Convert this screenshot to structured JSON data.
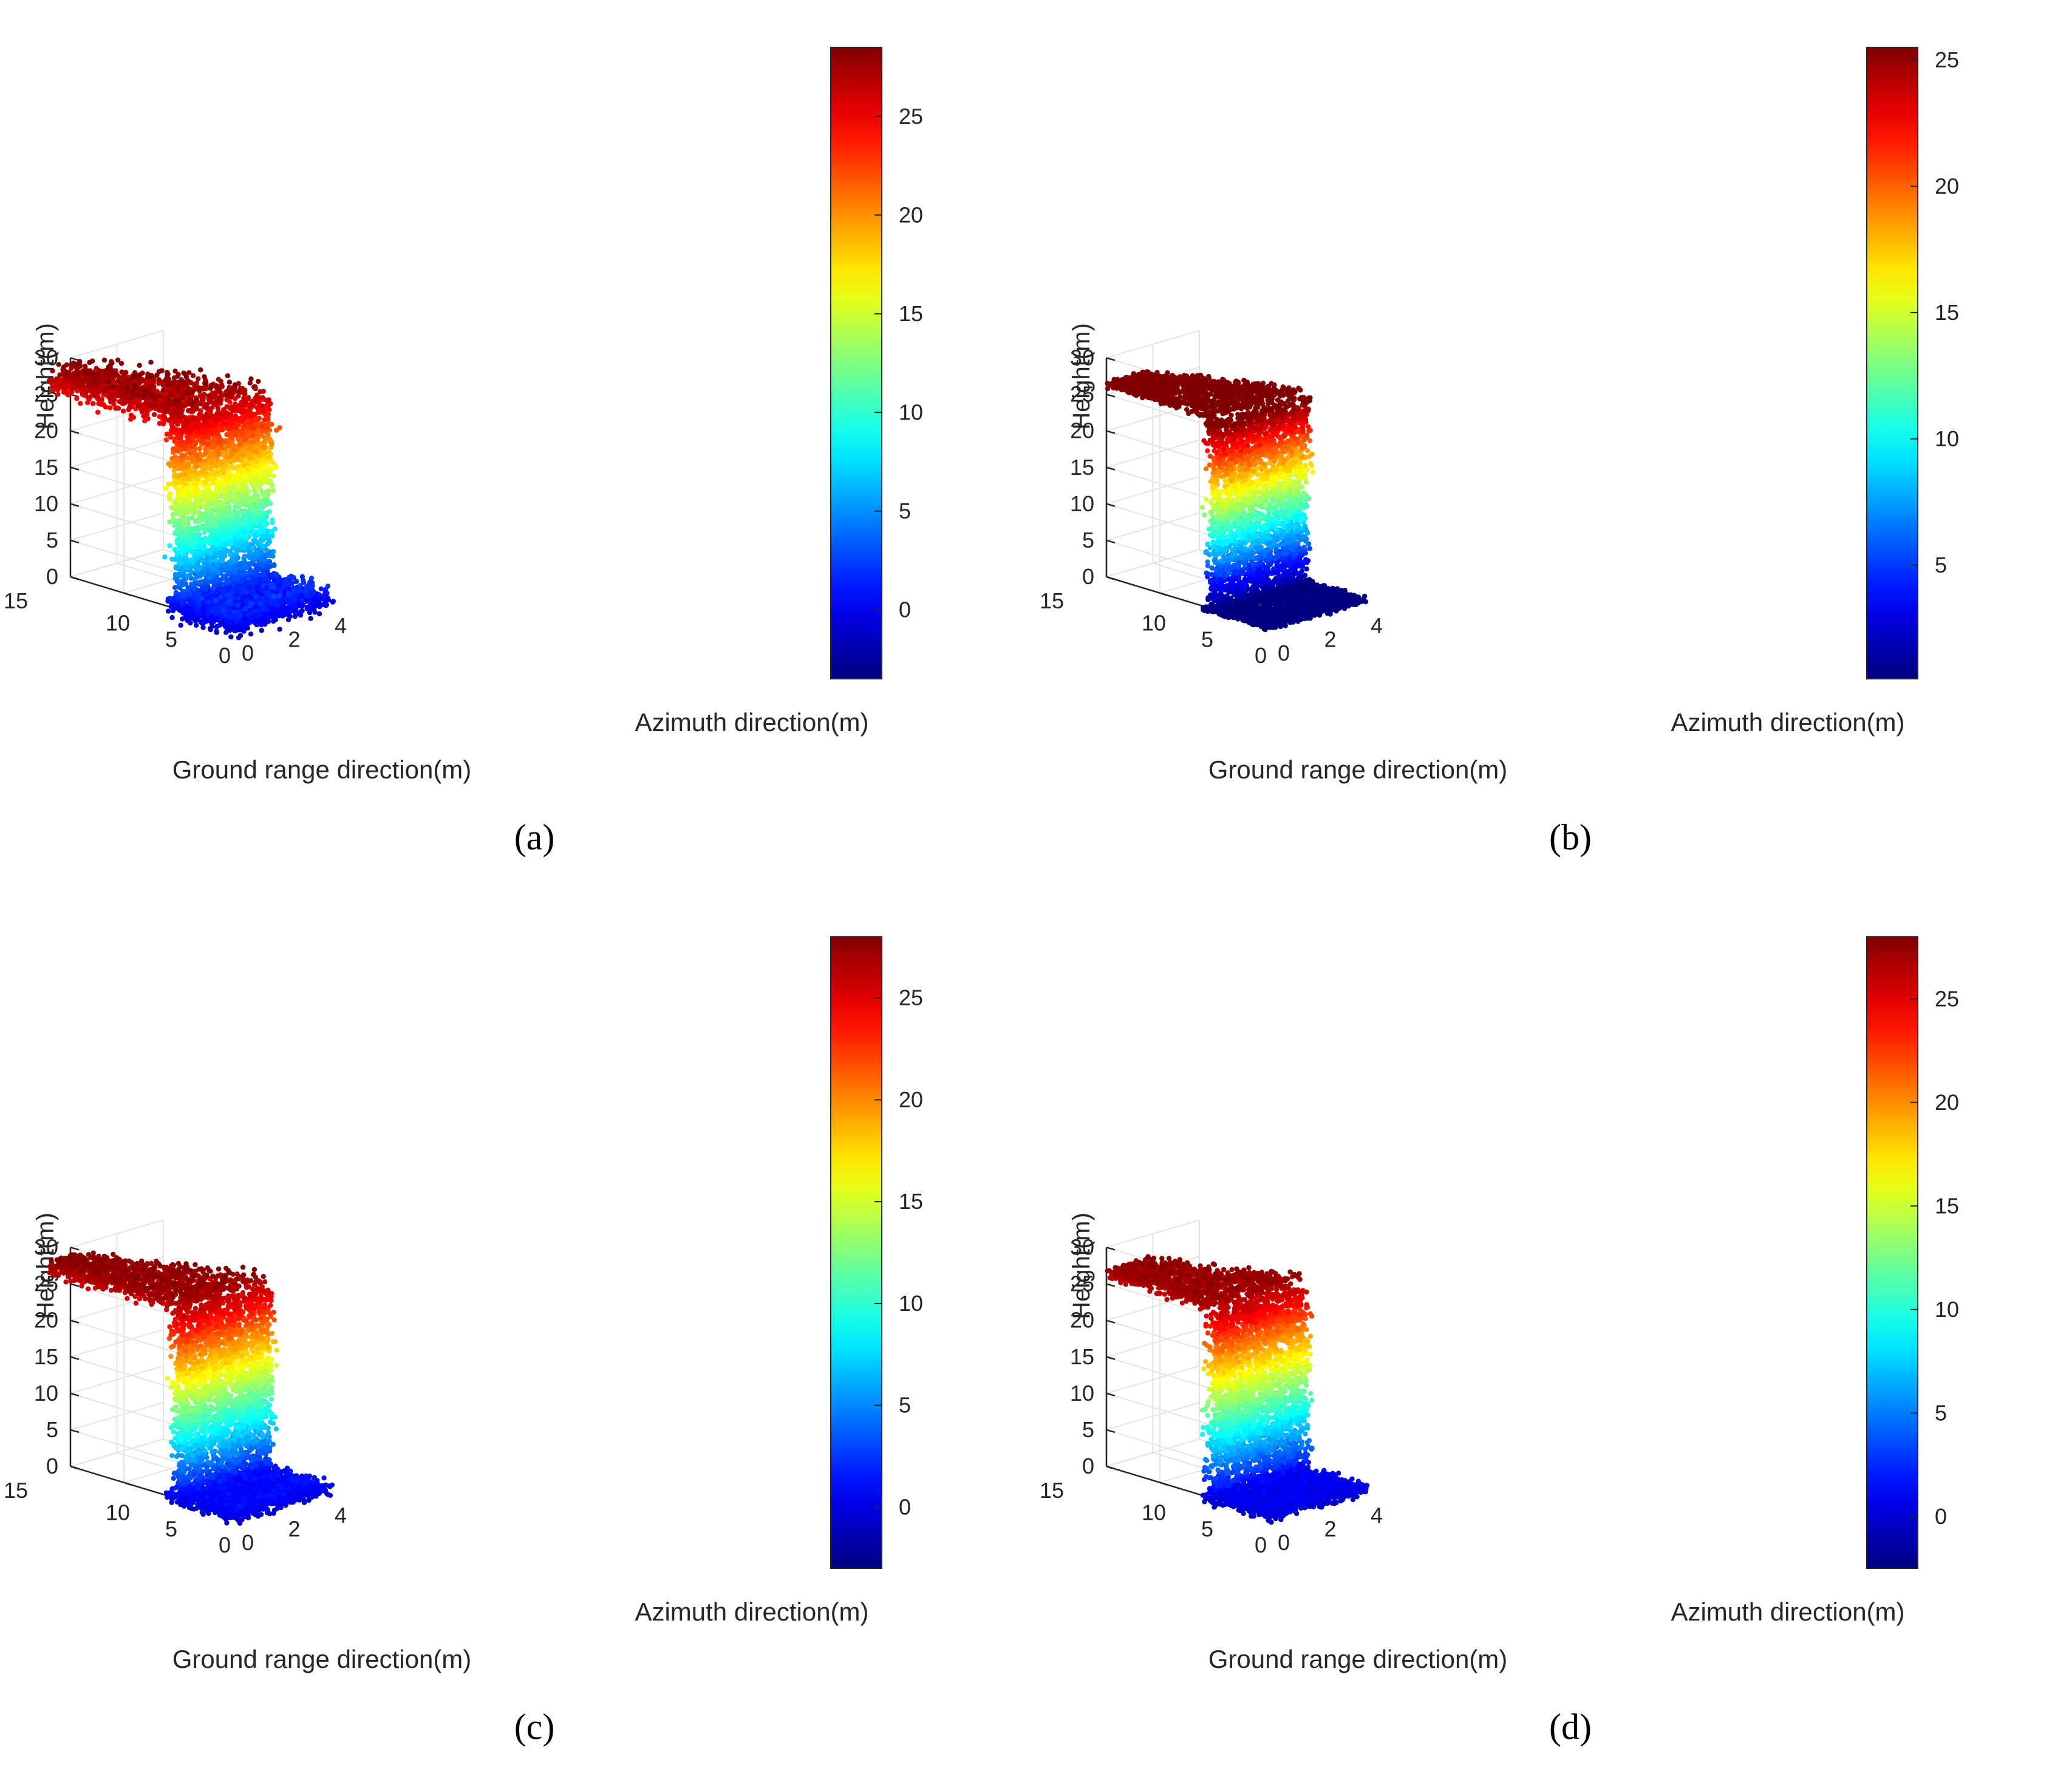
{
  "figure": {
    "panel_labels": [
      "(a)",
      "(b)",
      "(c)",
      "(d)"
    ]
  },
  "chart_data": [
    {
      "panel": "a",
      "type": "scatter",
      "title": "",
      "xlabel": "Ground range direction(m)",
      "ylabel": "Azimuth direction(m)",
      "zlabel": "Height(m)",
      "xticks": [
        10,
        5,
        0
      ],
      "xtick_extra": [
        15
      ],
      "yticks": [
        0,
        2,
        4
      ],
      "zticks": [
        0,
        5,
        10,
        15,
        20,
        25,
        30
      ],
      "xlim": [
        0,
        15
      ],
      "ylim": [
        0,
        4
      ],
      "zlim": [
        0,
        30
      ],
      "colorbar": {
        "ticks": [
          0,
          5,
          10,
          15,
          20,
          25
        ],
        "min": -3.5,
        "max": 28.5
      },
      "ground": {
        "height_mean": 0.5,
        "height_spread": 2.0
      },
      "roof": {
        "height_mean": 26.5,
        "height_spread": 2.2,
        "extent_x": 12
      }
    },
    {
      "panel": "b",
      "type": "scatter",
      "title": "",
      "xlabel": "Ground range direction(m)",
      "ylabel": "Azimuth direction(m)",
      "zlabel": "Height(m)",
      "xticks": [
        10,
        5,
        0
      ],
      "xtick_extra": [
        15
      ],
      "yticks": [
        0,
        2,
        4
      ],
      "zticks": [
        0,
        5,
        10,
        15,
        20,
        25,
        30
      ],
      "xlim": [
        0,
        15
      ],
      "ylim": [
        0,
        4
      ],
      "zlim": [
        0,
        30
      ],
      "colorbar": {
        "ticks": [
          5,
          10,
          15,
          20,
          25
        ],
        "min": 0.5,
        "max": 25.5
      },
      "ground": {
        "height_mean": 0.2,
        "height_spread": 0.4
      },
      "roof": {
        "height_mean": 26.8,
        "height_spread": 0.5,
        "extent_x": 10
      }
    },
    {
      "panel": "c",
      "type": "scatter",
      "title": "",
      "xlabel": "Ground range direction(m)",
      "ylabel": "Azimuth direction(m)",
      "zlabel": "Height(m)",
      "xticks": [
        10,
        5,
        0
      ],
      "xtick_extra": [
        15
      ],
      "yticks": [
        0,
        2,
        4
      ],
      "zticks": [
        0,
        5,
        10,
        15,
        20,
        25,
        30
      ],
      "xlim": [
        0,
        15
      ],
      "ylim": [
        0,
        4
      ],
      "zlim": [
        0,
        30
      ],
      "colorbar": {
        "ticks": [
          0,
          5,
          10,
          15,
          20,
          25
        ],
        "min": -3.0,
        "max": 28.0
      },
      "ground": {
        "height_mean": 0.3,
        "height_spread": 1.2
      },
      "roof": {
        "height_mean": 26.8,
        "height_spread": 1.3,
        "extent_x": 12
      }
    },
    {
      "panel": "d",
      "type": "scatter",
      "title": "",
      "xlabel": "Ground range direction(m)",
      "ylabel": "Azimuth direction(m)",
      "zlabel": "Height(m)",
      "xticks": [
        10,
        5,
        0
      ],
      "xtick_extra": [
        15
      ],
      "yticks": [
        0,
        2,
        4
      ],
      "zticks": [
        0,
        5,
        10,
        15,
        20,
        25,
        30
      ],
      "xlim": [
        0,
        15
      ],
      "ylim": [
        0,
        4
      ],
      "zlim": [
        0,
        30
      ],
      "colorbar": {
        "ticks": [
          0,
          5,
          10,
          15,
          20,
          25
        ],
        "min": -2.5,
        "max": 28.0
      },
      "ground": {
        "height_mean": 0.3,
        "height_spread": 1.0
      },
      "roof": {
        "height_mean": 26.8,
        "height_spread": 1.0,
        "extent_x": 10
      }
    }
  ]
}
